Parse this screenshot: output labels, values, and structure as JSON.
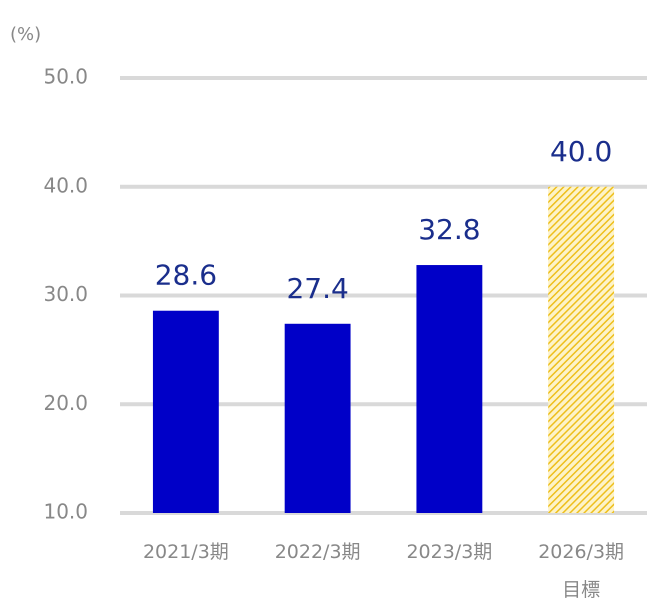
{
  "chart_data": {
    "type": "bar",
    "unit_label": "(%)",
    "categories": [
      "2021/3期",
      "2022/3期",
      "2023/3期",
      "2026/3期\n目標"
    ],
    "values": [
      28.6,
      27.4,
      32.8,
      40.0
    ],
    "value_labels": [
      "28.6",
      "27.4",
      "32.8",
      "40.0"
    ],
    "colors": [
      "#0000c8",
      "#0000c8",
      "#0000c8",
      "#f2c62e"
    ],
    "hatched": [
      false,
      false,
      false,
      true
    ],
    "ylim": [
      10,
      50
    ],
    "yticks": [
      {
        "value": 10,
        "label": "10.0"
      },
      {
        "value": 20,
        "label": "20.0"
      },
      {
        "value": 30,
        "label": "30.0"
      },
      {
        "value": 40,
        "label": "40.0"
      },
      {
        "value": 50,
        "label": "50.0"
      }
    ],
    "grid": true
  }
}
